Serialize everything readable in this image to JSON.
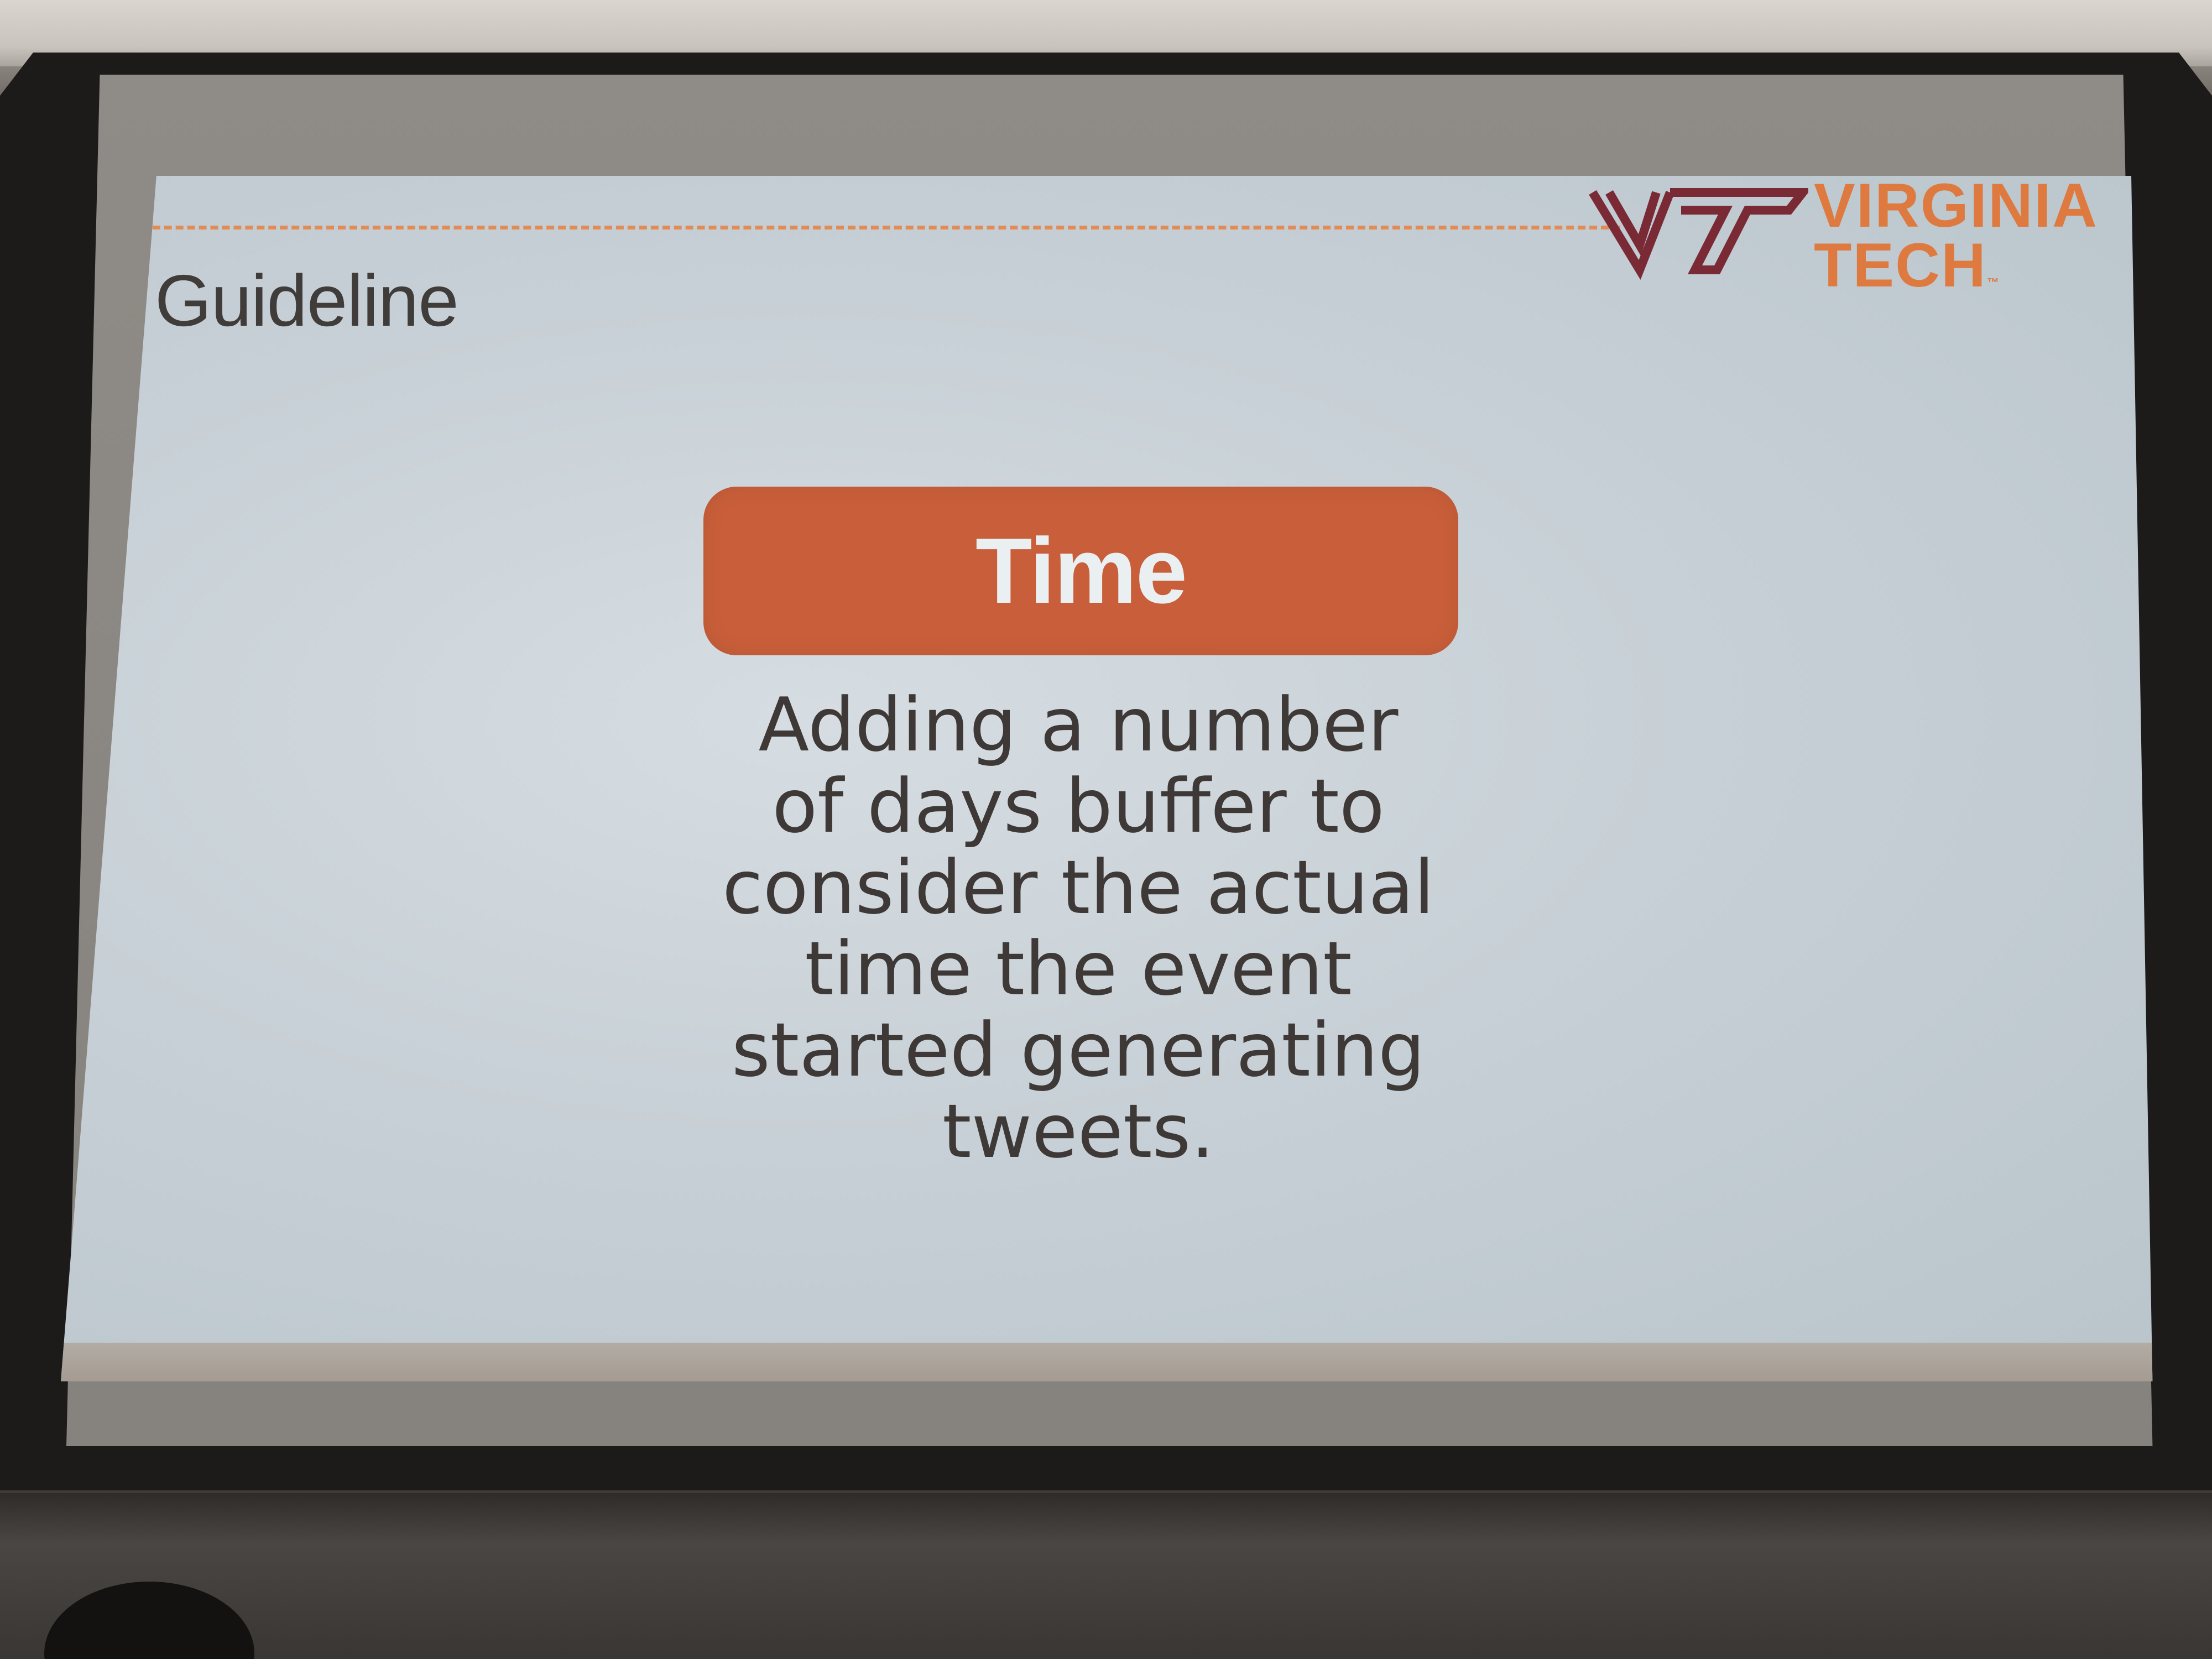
{
  "slide": {
    "title": "Guideline",
    "logo": {
      "name": "virginia-tech-logo",
      "mark_text": "VT",
      "line1": "VIRGINIA",
      "line2": "TECH",
      "trademark": "™"
    },
    "badge_label": "Time",
    "body_lines": [
      "Adding a number",
      "of days buffer to",
      "consider the actual",
      "time the event",
      "started generating",
      "tweets."
    ]
  },
  "colors": {
    "accent_orange": "#c95f3a",
    "logo_orange": "#de7a3f",
    "logo_maroon": "#7a2a35",
    "slide_background": "#c9d1d6",
    "text_dark": "#3e3936"
  }
}
